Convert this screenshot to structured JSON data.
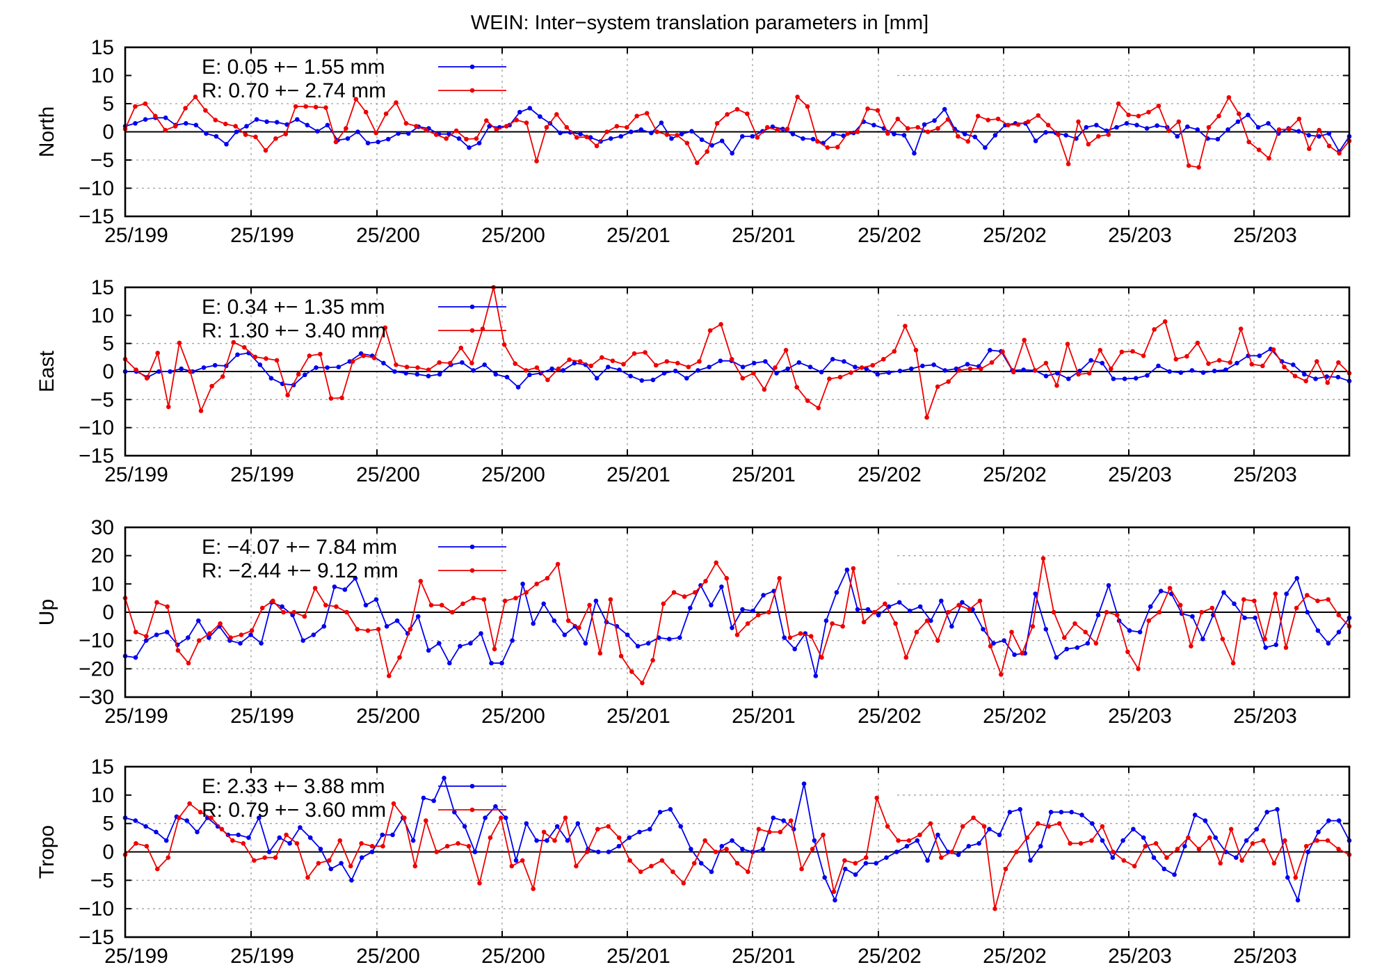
{
  "title": "WEIN: Inter−system translation parameters in [mm]",
  "colors": {
    "E": "#0000ee",
    "R": "#ee0000",
    "grid": "#a0a0a0"
  },
  "x_tick_labels": [
    "25/199",
    "25/199",
    "25/200",
    "25/200",
    "25/201",
    "25/201",
    "25/202",
    "25/202",
    "25/203",
    "25/203"
  ],
  "chart_data": [
    {
      "type": "line",
      "ylabel": "North",
      "ylim": [
        -15,
        15
      ],
      "yticks": [
        15,
        10,
        5,
        0,
        -5,
        -10,
        -15
      ],
      "series": [
        {
          "name": "E",
          "legend": "E:   0.05 +− 1.55 mm",
          "values": [
            1,
            1.5,
            2.2,
            2.5,
            2.5,
            1.2,
            1.5,
            1.2,
            -0.3,
            -0.8,
            -2.2,
            0,
            1,
            2.2,
            1.8,
            1.7,
            1.3,
            2.2,
            1.2,
            0.1,
            1.2,
            -1.5,
            -1.2,
            0,
            -2,
            -1.8,
            -1.3,
            -0.3,
            -0.3,
            0.9,
            0.6,
            -0.4,
            -0.4,
            -1.2,
            -2.8,
            -2,
            1,
            0.8,
            1.2,
            3.5,
            4.2,
            2.7,
            1.5,
            -0.2,
            -0.1,
            -0.4,
            -1,
            -1.7,
            -1.2,
            -0.8,
            0,
            0.4,
            -0.2,
            1.6,
            -1.2,
            -0.4,
            0.1,
            -1.4,
            -2.4,
            -1.6,
            -3.8,
            -0.8,
            -0.8,
            0.1,
            0.9,
            0.5,
            -0.4,
            -1.2,
            -1.3,
            -2,
            -0.4,
            -0.7,
            -0.2,
            1.8,
            1.2,
            0.6,
            -0.4,
            -0.6,
            -3.8,
            1.3,
            2,
            4,
            0.5,
            -0.4,
            -0.9,
            -2.8,
            -0.6,
            1.2,
            1.5,
            1.5,
            -1.6,
            -0.1,
            -0.2,
            -0.6,
            -1.2,
            0.8,
            1.2,
            0.2,
            0.8,
            1.5,
            1.2,
            0.6,
            1.1,
            0.8,
            -0.8,
            0.9,
            0.4,
            -1.2,
            -1.3,
            0.4,
            1.8,
            3,
            0.8,
            1.5,
            -0.3,
            0.6,
            0.1,
            -0.6,
            -0.8,
            -0.3,
            -3.5,
            -0.8
          ]
        },
        {
          "name": "R",
          "legend": "R:   0.70 +− 2.74 mm",
          "values": [
            0.5,
            4.5,
            5,
            2.8,
            0.3,
            1,
            4.2,
            6.2,
            3.8,
            2.1,
            1.4,
            1,
            -0.5,
            -0.9,
            -3.3,
            -1.2,
            -0.4,
            4.5,
            4.5,
            4.4,
            4.3,
            -1.8,
            0.6,
            5.8,
            3.5,
            -0.2,
            3.2,
            5.2,
            1.5,
            1,
            0.3,
            -0.5,
            -1.2,
            0.2,
            -1.3,
            -1.2,
            2,
            0.4,
            1,
            2.1,
            1.6,
            -5.2,
            0.8,
            3.1,
            0.8,
            -1,
            -0.9,
            -2.5,
            0,
            1,
            0.8,
            2.8,
            3.3,
            0,
            -0.5,
            -0.6,
            -2,
            -5.5,
            -3.5,
            1.5,
            3.1,
            4,
            3.2,
            -1,
            0.8,
            0.3,
            0.5,
            6.2,
            4.5,
            -1.7,
            -2.8,
            -2.7,
            -0.3,
            0,
            4.1,
            3.8,
            -0.3,
            2.3,
            0.6,
            0.8,
            0,
            0.6,
            2.2,
            -0.8,
            -1.7,
            2.8,
            2.1,
            2.3,
            1.2,
            1.3,
            1.8,
            2.9,
            1.2,
            -0.5,
            -5.7,
            1.8,
            -2.2,
            -0.8,
            -0.5,
            5,
            3,
            2.8,
            3.5,
            4.6,
            0.2,
            1.8,
            -6,
            -6.3,
            0.8,
            2.8,
            6.1,
            3.2,
            -1.8,
            -3.2,
            -4.7,
            0.4,
            0.5,
            2.3,
            -3,
            0.3,
            -2.5,
            -3.8,
            -1.6
          ]
        }
      ]
    },
    {
      "type": "line",
      "ylabel": "East",
      "ylim": [
        -15,
        15
      ],
      "yticks": [
        15,
        10,
        5,
        0,
        -5,
        -10,
        -15
      ],
      "series": [
        {
          "name": "E",
          "legend": "E:   0.34 +− 1.35 mm",
          "values": [
            0,
            0,
            -1,
            0,
            0,
            0.5,
            0,
            0.7,
            1.1,
            1,
            3,
            3.3,
            1.2,
            -1.2,
            -2.2,
            -2.4,
            -0.6,
            0.7,
            0.7,
            0.8,
            1.8,
            3.2,
            2.8,
            1.5,
            0,
            -0.3,
            -0.5,
            -0.8,
            -0.5,
            1.2,
            1.6,
            0.2,
            1.2,
            -0.5,
            -1,
            -2.8,
            -0.6,
            -0.3,
            0.5,
            0.2,
            1.5,
            1.2,
            -1.2,
            0.8,
            0.3,
            -0.8,
            -1.6,
            -1.5,
            -0.3,
            0.1,
            -1.2,
            0.2,
            0.8,
            1.9,
            1.9,
            0.8,
            1.5,
            1.8,
            -0.3,
            0.5,
            1.6,
            0.8,
            -0.1,
            2.2,
            1.8,
            0.8,
            0.5,
            -0.5,
            -0.2,
            0.1,
            0.5,
            1,
            1.2,
            0.2,
            0.5,
            1.3,
            0.9,
            3.8,
            3.6,
            0.2,
            0.3,
            0.2,
            -0.8,
            -0.3,
            -1.3,
            0.1,
            2,
            1.5,
            -1.3,
            -1.3,
            -1.2,
            -0.7,
            1,
            0,
            -0.2,
            0.2,
            -0.2,
            0.1,
            0.3,
            1.5,
            2.8,
            2.8,
            4,
            1.8,
            1.2,
            -0.5,
            -1.3,
            -0.9,
            -1,
            -1.7
          ]
        },
        {
          "name": "R",
          "legend": "R:   1.30 +− 3.40 mm",
          "values": [
            2.2,
            0.3,
            -1.2,
            3.3,
            -6.3,
            5.1,
            0,
            -7,
            -2.6,
            -0.9,
            5.2,
            4.3,
            2.6,
            2.3,
            2,
            -4.2,
            -0.5,
            2.8,
            3.1,
            -4.8,
            -4.7,
            1.8,
            2.8,
            2.4,
            7.8,
            1.2,
            0.8,
            0.7,
            0.3,
            1.6,
            1.5,
            4.2,
            1.5,
            7.6,
            15,
            4.8,
            1.4,
            0.2,
            0.7,
            -1.5,
            0.5,
            2.1,
            1.8,
            1,
            2.5,
            1.9,
            1.3,
            3.2,
            3.4,
            1.1,
            1.8,
            1.5,
            0.8,
            1.8,
            7.3,
            8.4,
            2.2,
            -1.2,
            -0.3,
            -3.2,
            0.7,
            3.8,
            -2.8,
            -5.2,
            -6.5,
            -1.3,
            -1,
            -0.2,
            0.7,
            1.1,
            2.2,
            3.6,
            8.1,
            3.8,
            -8.2,
            -2.7,
            -1.8,
            0.2,
            0.5,
            0.5,
            1.6,
            3.5,
            -0.1,
            5.6,
            0.2,
            1.5,
            -2.5,
            4.9,
            -0.5,
            -0.3,
            3.8,
            0.5,
            3.5,
            3.6,
            2.8,
            7.5,
            8.9,
            2.2,
            2.7,
            5.1,
            1.4,
            2,
            1.6,
            7.6,
            1.3,
            1,
            3.9,
            0.8,
            -0.8,
            -1.7,
            1.8,
            -2,
            1.6,
            -0.3
          ]
        }
      ]
    },
    {
      "type": "line",
      "ylabel": "Up",
      "ylim": [
        -30,
        30
      ],
      "yticks": [
        30,
        20,
        10,
        0,
        -10,
        -20,
        -30
      ],
      "series": [
        {
          "name": "E",
          "legend": "E:   −4.07 +− 7.84 mm",
          "values": [
            -15.5,
            -16,
            -10,
            -8,
            -7,
            -11.5,
            -9,
            -3,
            -9,
            -5,
            -10,
            -11,
            -8,
            -11,
            3.5,
            2,
            -1,
            -10,
            -8,
            -5,
            9,
            8,
            12,
            2.5,
            4.5,
            -5,
            -3,
            -7.5,
            -1.5,
            -13.5,
            -11,
            -18,
            -12,
            -11,
            -7.5,
            -18,
            -18,
            -10,
            10,
            -4,
            3,
            -3,
            -8,
            -5,
            -11,
            4,
            -3.5,
            -5,
            -8,
            -12,
            -11,
            -9,
            -9.5,
            -9,
            1.5,
            9.5,
            2.5,
            9,
            -5.5,
            1,
            0.5,
            6,
            7.5,
            -9,
            -13,
            -7.5,
            -22.5,
            -3,
            7,
            15,
            1,
            1,
            -1,
            2,
            3.5,
            0.5,
            2,
            -3,
            4,
            -5,
            3.5,
            1,
            -6,
            -11,
            -10,
            -15,
            -14.5,
            6.5,
            -6,
            -16,
            -13,
            -12.5,
            -11,
            -1,
            9.5,
            -3,
            -6.5,
            -7,
            2,
            7.5,
            6.5,
            -0.5,
            -1.5,
            -9.5,
            -1,
            7,
            3,
            -2,
            -2,
            -12.5,
            -11.5,
            6.5,
            12,
            0,
            -6.5,
            -11,
            -7,
            -2
          ]
        },
        {
          "name": "R",
          "legend": "R:   −2.44 +− 9.12 mm",
          "values": [
            5,
            -7,
            -8.5,
            3.5,
            2,
            -13.5,
            -18,
            -10,
            -7.5,
            -4,
            -9,
            -8,
            -6.5,
            1.5,
            4,
            0,
            0,
            -1.5,
            8.5,
            2.5,
            2,
            0,
            -6,
            -6.5,
            -6,
            -22.5,
            -16,
            -6,
            11,
            2.5,
            2.5,
            0,
            3,
            5,
            4.5,
            -13,
            4,
            5,
            7,
            10,
            12,
            17,
            -3,
            -5.5,
            2.5,
            -14.5,
            4.5,
            -15.5,
            -21,
            -25,
            -17,
            3,
            7,
            5.5,
            7,
            11,
            17.5,
            12,
            -8,
            -4,
            -1,
            0,
            12,
            -9,
            -7.5,
            -8.5,
            -16,
            -4,
            -5,
            15.5,
            -3.5,
            0,
            3,
            -4,
            -16,
            -7,
            -3,
            -10,
            0,
            2.5,
            1,
            4,
            -12,
            -22,
            -7,
            -14.5,
            -5,
            19,
            0,
            -9,
            -4,
            -7,
            -11,
            0,
            -1,
            -14,
            -20,
            -3,
            0,
            8.5,
            2.5,
            -12,
            0,
            1.5,
            -9.5,
            -18,
            4.5,
            4,
            -9.5,
            6.5,
            -12.5,
            1.5,
            6,
            4,
            4.5,
            -1,
            -5
          ]
        }
      ]
    },
    {
      "type": "line",
      "ylabel": "Tropo",
      "ylim": [
        -15,
        15
      ],
      "yticks": [
        15,
        10,
        5,
        0,
        -5,
        -10,
        -15
      ],
      "series": [
        {
          "name": "E",
          "legend": "E:   2.33 +− 3.88 mm",
          "values": [
            6,
            5.5,
            4.5,
            3.5,
            2,
            6.2,
            5.5,
            3.5,
            6,
            4.5,
            3,
            3,
            2.5,
            6,
            0,
            2.5,
            1.5,
            4.3,
            2.5,
            0.5,
            -3,
            -2,
            -5,
            -1,
            0,
            3,
            3,
            6,
            2,
            9.5,
            9,
            13,
            7,
            4.5,
            0,
            6,
            8,
            6,
            -1.5,
            5,
            2,
            2,
            4.5,
            2,
            5,
            0.5,
            0,
            0,
            1,
            2.5,
            3.5,
            4,
            7,
            7.5,
            4.5,
            0.5,
            -2,
            -3.5,
            1,
            2,
            0.5,
            0,
            0.5,
            6,
            5.5,
            4,
            12,
            2,
            -4.5,
            -8.5,
            -3,
            -4,
            -2,
            -2,
            -1,
            0,
            1,
            2,
            -1.5,
            3,
            0,
            -0.5,
            1,
            1.5,
            4,
            3,
            7,
            7.5,
            -1.5,
            1,
            7,
            7,
            7,
            6.5,
            5,
            2,
            -1,
            2,
            4,
            2.5,
            -1,
            -3,
            -4,
            1,
            6.5,
            5.5,
            2.5,
            0,
            -1,
            2,
            4,
            7,
            7.5,
            -4.5,
            -8.5,
            0,
            3.5,
            5.5,
            5.5,
            2
          ]
        },
        {
          "name": "R",
          "legend": "R:   0.79 +− 3.60 mm",
          "values": [
            -0.5,
            1.5,
            1,
            -3,
            -1,
            6,
            8.5,
            7,
            6,
            4,
            2,
            1.5,
            -1.5,
            -1,
            -1,
            3,
            1.5,
            -4.5,
            -2,
            -1.5,
            2,
            -2.5,
            1.5,
            1,
            1,
            8.5,
            6,
            -2.5,
            5.5,
            0,
            1,
            1.5,
            1,
            -5.5,
            2.5,
            6,
            -2.5,
            -1.5,
            -6.5,
            3.5,
            2,
            6,
            -2.5,
            0,
            4,
            4.5,
            2.5,
            -1.5,
            -3.5,
            -2.5,
            -1.5,
            -3.5,
            -5.5,
            -2,
            2,
            0,
            0.5,
            -2,
            -3.5,
            4,
            3.5,
            3.5,
            5.5,
            -3,
            0.5,
            3,
            -7,
            -1.5,
            -2,
            -1,
            9.5,
            4.5,
            2,
            2,
            3,
            5,
            -1,
            0,
            4.5,
            6,
            4.5,
            -10,
            -3,
            0,
            2.5,
            5,
            4.5,
            5,
            1.5,
            1.5,
            2,
            4.5,
            0,
            -1.5,
            -2.5,
            1,
            1.5,
            -1,
            0.5,
            2.5,
            0.5,
            2.5,
            -2,
            4,
            -1.5,
            1.5,
            2,
            -2,
            2,
            -4.5,
            1,
            2,
            2,
            0.5,
            -0.5
          ]
        }
      ]
    }
  ]
}
